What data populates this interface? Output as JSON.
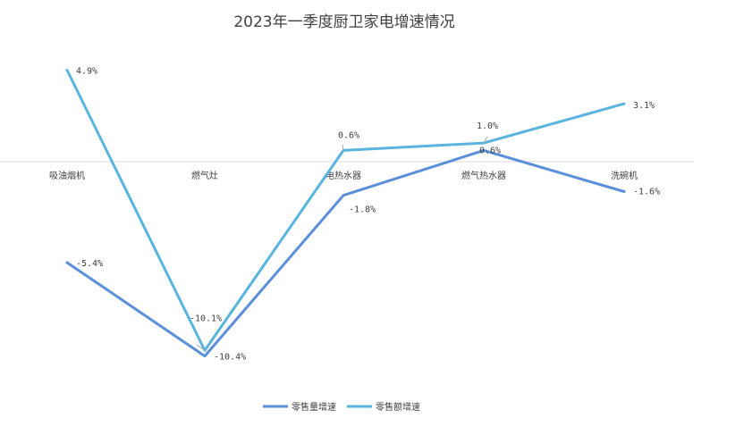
{
  "chart_data": {
    "type": "line",
    "title": "2023年一季度厨卫家电增速情况",
    "categories": [
      "吸油烟机",
      "燃气灶",
      "电热水器",
      "燃气热水器",
      "洗碗机"
    ],
    "unit": "%",
    "series": [
      {
        "name": "零售量增速",
        "values": [
          -5.4,
          -10.4,
          -1.8,
          0.6,
          -1.6
        ],
        "labels": [
          "-5.4%",
          "-10.4%",
          "-1.8%",
          "0.6%",
          "-1.6%"
        ],
        "color": "#5b8fd9"
      },
      {
        "name": "零售额增速",
        "values": [
          4.9,
          -10.1,
          0.6,
          1.0,
          3.1
        ],
        "labels": [
          "4.9%",
          "-10.1%",
          "0.6%",
          "1.0%",
          "3.1%"
        ],
        "color": "#5ab4e0"
      }
    ],
    "legend": "bottom",
    "grid": false
  }
}
